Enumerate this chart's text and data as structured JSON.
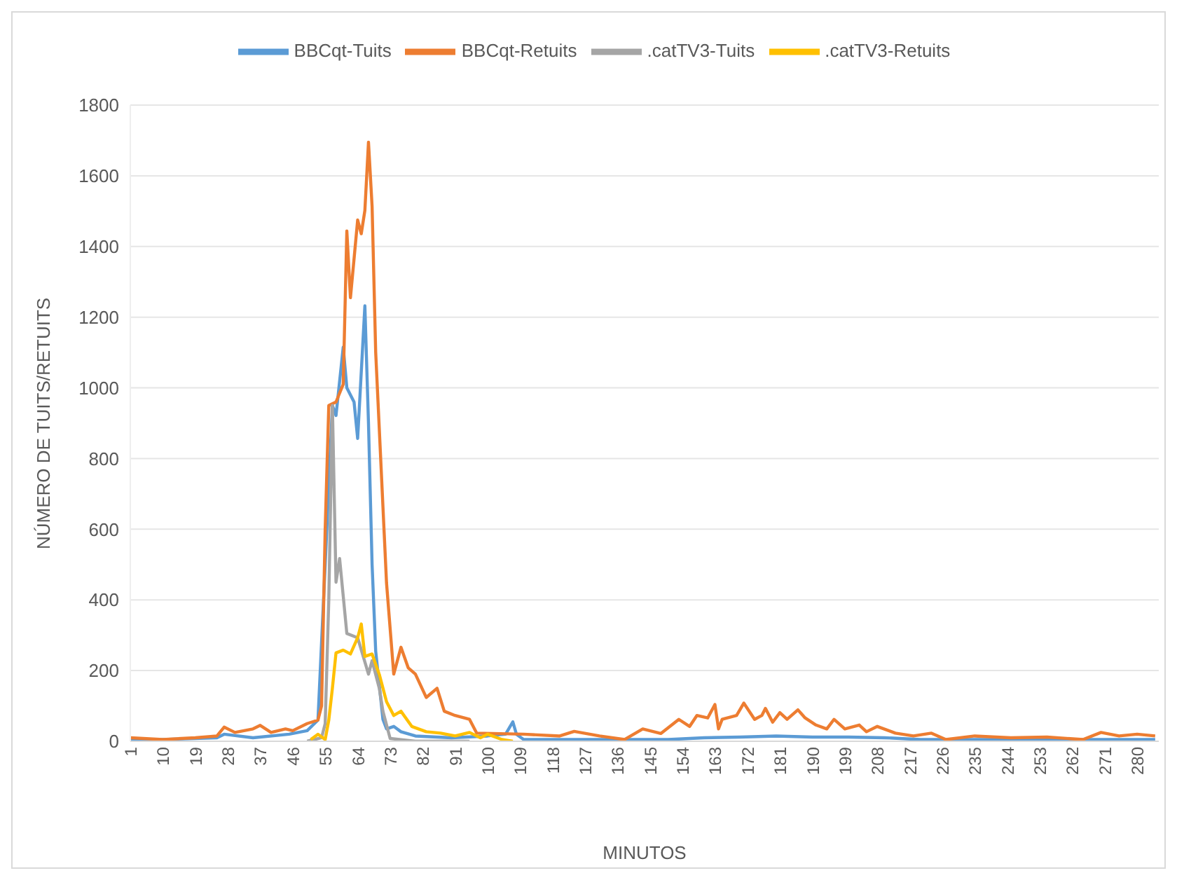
{
  "chart_data": {
    "type": "line",
    "xlabel": "MINUTOS",
    "ylabel": "NÚMERO DE TUITS/RETUITS",
    "xlim": [
      1,
      286
    ],
    "xticks": [
      1,
      10,
      19,
      28,
      37,
      46,
      55,
      64,
      73,
      82,
      91,
      100,
      109,
      118,
      127,
      136,
      145,
      154,
      163,
      172,
      181,
      190,
      199,
      208,
      217,
      226,
      235,
      244,
      253,
      262,
      271,
      280
    ],
    "ylim": [
      0,
      1800
    ],
    "yticks": [
      0,
      200,
      400,
      600,
      800,
      1000,
      1200,
      1400,
      1600,
      1800
    ],
    "grid": "y",
    "legend": "top",
    "marker": "none",
    "line_style": "solid",
    "series": [
      {
        "name": "BBCqt-Tuits",
        "color": "#5b9bd5",
        "x": [
          1,
          10,
          25,
          27,
          35,
          45,
          50,
          53,
          55,
          57,
          58,
          60,
          61,
          63,
          64,
          66,
          67,
          68,
          69,
          71,
          72,
          74,
          76,
          80,
          90,
          100,
          105,
          107,
          108,
          110,
          130,
          150,
          160,
          170,
          180,
          190,
          200,
          210,
          220,
          240,
          260,
          285
        ],
        "values": [
          3,
          5,
          10,
          20,
          10,
          20,
          30,
          60,
          500,
          950,
          922,
          1115,
          1000,
          960,
          857,
          1232,
          900,
          500,
          255,
          62,
          35,
          42,
          27,
          15,
          10,
          15,
          20,
          55,
          20,
          5,
          5,
          5,
          10,
          12,
          15,
          12,
          12,
          10,
          5,
          5,
          5,
          5
        ]
      },
      {
        "name": "BBCqt-Retuits",
        "color": "#ed7d31",
        "x": [
          1,
          10,
          19,
          25,
          27,
          30,
          35,
          37,
          40,
          44,
          46,
          50,
          53,
          54,
          55,
          56,
          58,
          60,
          61,
          62,
          64,
          65,
          66,
          67,
          68,
          69,
          72,
          74,
          76,
          78,
          80,
          83,
          86,
          88,
          91,
          95,
          97,
          110,
          120,
          124,
          131,
          138,
          143,
          148,
          153,
          156,
          158,
          161,
          163,
          164,
          165,
          169,
          171,
          174,
          176,
          177,
          179,
          181,
          183,
          186,
          188,
          191,
          194,
          196,
          199,
          203,
          205,
          208,
          213,
          218,
          223,
          227,
          235,
          245,
          255,
          265,
          270,
          275,
          280,
          285
        ],
        "values": [
          10,
          5,
          10,
          15,
          40,
          25,
          35,
          45,
          25,
          35,
          30,
          50,
          60,
          100,
          600,
          950,
          960,
          1010,
          1444,
          1255,
          1475,
          1436,
          1502,
          1695,
          1514,
          1100,
          448,
          190,
          266,
          208,
          190,
          124,
          150,
          85,
          73,
          62,
          23,
          20,
          15,
          28,
          15,
          5,
          35,
          22,
          62,
          42,
          73,
          66,
          104,
          35,
          62,
          73,
          108,
          62,
          73,
          93,
          54,
          81,
          62,
          89,
          66,
          46,
          35,
          62,
          35,
          46,
          27,
          42,
          23,
          15,
          23,
          5,
          15,
          10,
          12,
          5,
          25,
          15,
          20,
          15
        ]
      },
      {
        "name": ".catTV3-Tuits",
        "color": "#a5a5a5",
        "x": [
          50,
          54,
          55,
          56,
          57,
          58,
          59,
          61,
          64,
          67,
          68,
          70,
          71,
          73,
          80,
          95
        ],
        "values": [
          0,
          10,
          50,
          400,
          950,
          450,
          517,
          305,
          293,
          190,
          228,
          150,
          85,
          8,
          0,
          0
        ]
      },
      {
        "name": ".catTV3-Retuits",
        "color": "#ffc000",
        "x": [
          51,
          53,
          55,
          56,
          57,
          58,
          60,
          62,
          64,
          65,
          66,
          68,
          70,
          72,
          74,
          76,
          79,
          83,
          87,
          91,
          95,
          98,
          100,
          104,
          107
        ],
        "values": [
          5,
          20,
          5,
          60,
          150,
          250,
          258,
          247,
          293,
          332,
          240,
          247,
          189,
          112,
          73,
          85,
          42,
          27,
          23,
          15,
          25,
          10,
          20,
          5,
          0
        ]
      }
    ]
  }
}
